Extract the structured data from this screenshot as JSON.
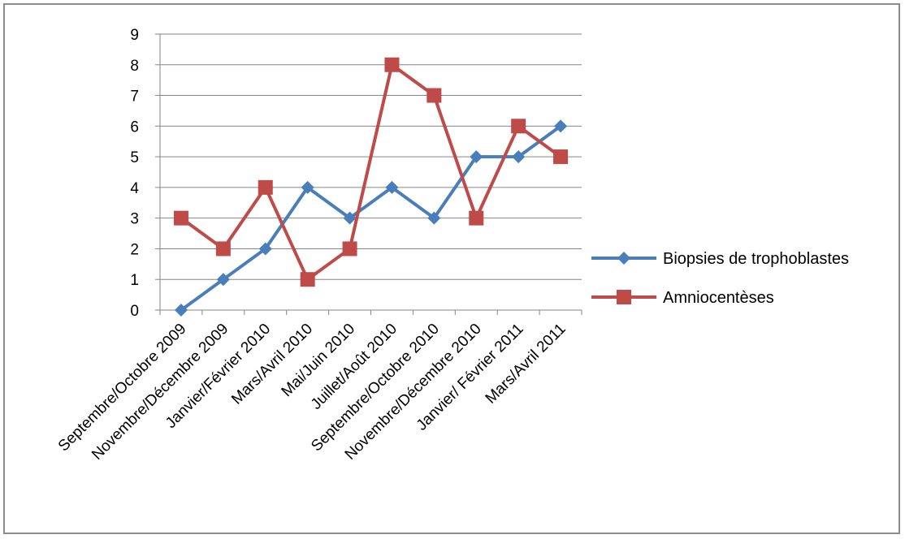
{
  "chart_data": {
    "type": "line",
    "categories": [
      "Septembre/Octobre 2009",
      "Novembre/Décembre 2009",
      "Janvier/Février 2010",
      "Mars/Avril 2010",
      "Mai/Juin 2010",
      "Juillet/Août 2010",
      "Septembre/Octobre 2010",
      "Novembre/Décembre 2010",
      "Janvier/ Février 2011",
      "Mars/Avril 2011"
    ],
    "series": [
      {
        "name": "Biopsies de trophoblastes",
        "values": [
          0,
          1,
          2,
          4,
          3,
          4,
          3,
          5,
          5,
          6
        ],
        "color": "#4a7ebb",
        "marker": "diamond"
      },
      {
        "name": "Amniocentèses",
        "values": [
          3,
          2,
          4,
          1,
          2,
          8,
          7,
          3,
          6,
          5
        ],
        "color": "#be4b48",
        "marker": "square"
      }
    ],
    "ylim": [
      0,
      9
    ],
    "yticks": [
      "0",
      "1",
      "2",
      "3",
      "4",
      "5",
      "6",
      "7",
      "8",
      "9"
    ],
    "grid": true,
    "legend_position": "right"
  },
  "colors": {
    "gridline": "#868686",
    "axis": "#868686",
    "frame": "#8c8c8c"
  }
}
